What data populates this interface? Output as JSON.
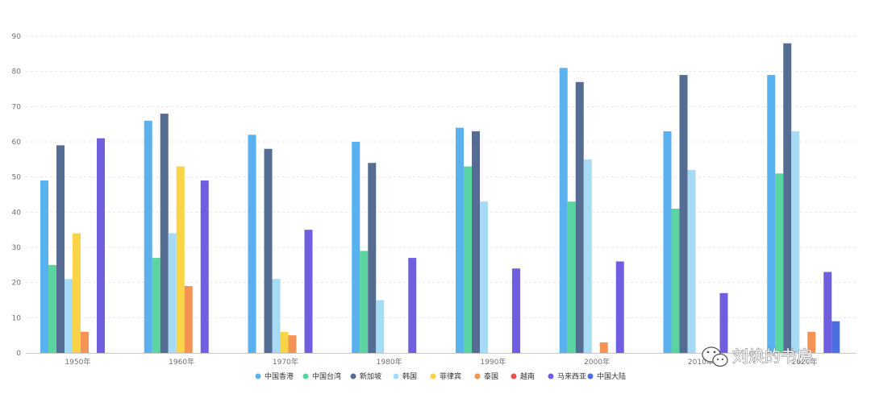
{
  "chart_data": {
    "type": "bar",
    "categories": [
      "1950年",
      "1960年",
      "1970年",
      "1980年",
      "1990年",
      "2000年",
      "2010年",
      "2020年"
    ],
    "ylim": [
      0,
      90
    ],
    "yticks": [
      0,
      10,
      20,
      30,
      40,
      50,
      60,
      70,
      80,
      90
    ],
    "grid": true,
    "legend_position": "bottom",
    "series": [
      {
        "name": "中国香港",
        "color": "#5ab1ef",
        "values": [
          49,
          66,
          62,
          60,
          64,
          81,
          63,
          79
        ]
      },
      {
        "name": "中国台湾",
        "color": "#5ad4a0",
        "values": [
          25,
          27,
          null,
          29,
          53,
          43,
          41,
          51
        ]
      },
      {
        "name": "新加坡",
        "color": "#566d93",
        "values": [
          59,
          68,
          58,
          54,
          63,
          77,
          79,
          88
        ]
      },
      {
        "name": "韩国",
        "color": "#a7daf5",
        "values": [
          21,
          34,
          21,
          15,
          43,
          55,
          52,
          63
        ]
      },
      {
        "name": "菲律宾",
        "color": "#f9d447",
        "values": [
          34,
          53,
          6,
          null,
          null,
          null,
          null,
          null
        ]
      },
      {
        "name": "泰国",
        "color": "#f59355",
        "values": [
          6,
          19,
          5,
          null,
          null,
          3,
          null,
          6
        ]
      },
      {
        "name": "越南",
        "color": "#e8524a",
        "values": [
          null,
          null,
          null,
          null,
          null,
          null,
          null,
          null
        ]
      },
      {
        "name": "马来西亚",
        "color": "#6f5fde",
        "values": [
          61,
          49,
          35,
          27,
          24,
          26,
          17,
          23
        ]
      },
      {
        "name": "中国大陆",
        "color": "#4b6fe0",
        "values": [
          null,
          null,
          null,
          null,
          null,
          null,
          null,
          9
        ]
      }
    ]
  },
  "watermark": {
    "text": "刘焕的书房",
    "icon": "wechat-icon"
  }
}
